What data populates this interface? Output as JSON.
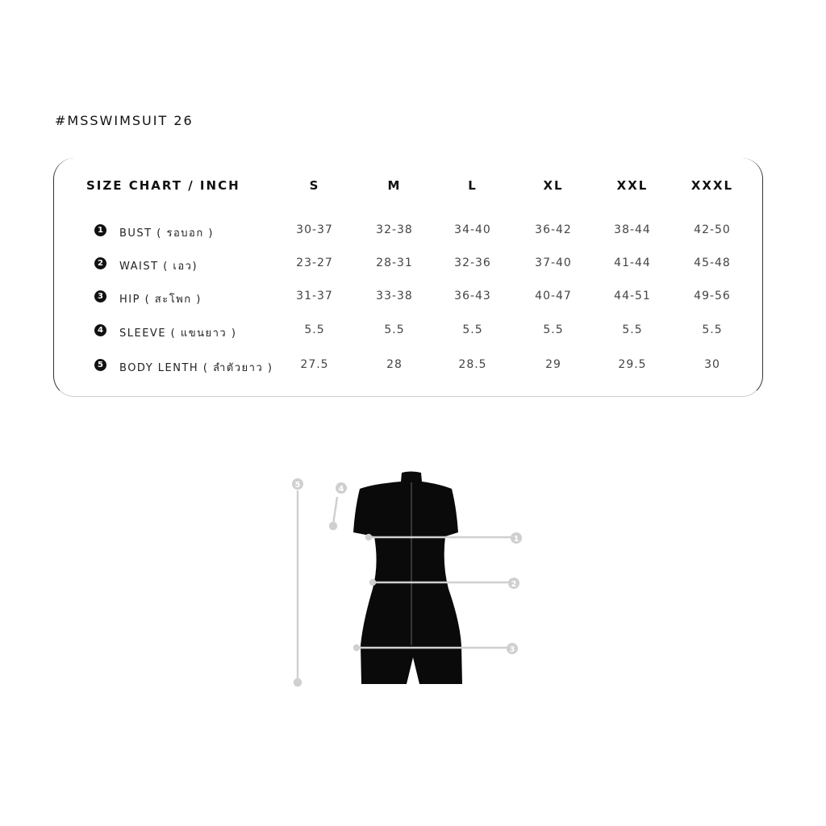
{
  "title": "#MSSWIMSUIT 26",
  "table": {
    "header": "SIZE CHART / INCH",
    "sizes": [
      "S",
      "M",
      "L",
      "XL",
      "XXL",
      "XXXL"
    ],
    "rows": [
      {
        "num": "1",
        "label": "BUST ( รอบอก )",
        "values": [
          "30-37",
          "32-38",
          "34-40",
          "36-42",
          "38-44",
          "42-50"
        ]
      },
      {
        "num": "2",
        "label": "WAIST ( เอว)",
        "values": [
          "23-27",
          "28-31",
          "32-36",
          "37-40",
          "41-44",
          "45-48"
        ]
      },
      {
        "num": "3",
        "label": "HIP ( สะโพก )",
        "values": [
          "31-37",
          "33-38",
          "36-43",
          "40-47",
          "44-51",
          "49-56"
        ]
      },
      {
        "num": "4",
        "label": "SLEEVE ( แขนยาว )",
        "values": [
          "5.5",
          "5.5",
          "5.5",
          "5.5",
          "5.5",
          "5.5"
        ]
      },
      {
        "num": "5",
        "label": "BODY LENTH ( ลำตัวยาว )",
        "values": [
          "27.5",
          "28",
          "28.5",
          "29",
          "29.5",
          "30"
        ]
      }
    ]
  },
  "diagram": {
    "markers": [
      "1",
      "2",
      "3",
      "4",
      "5"
    ],
    "garment_color": "#0a0a0a",
    "guide_color": "#cfcfcf"
  }
}
